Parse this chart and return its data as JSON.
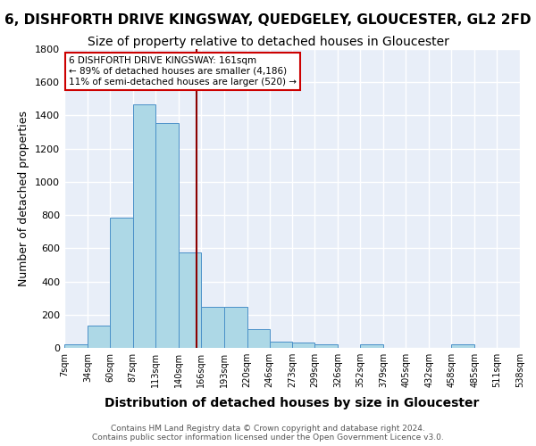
{
  "title1": "6, DISHFORTH DRIVE KINGSWAY, QUEDGELEY, GLOUCESTER, GL2 2FD",
  "title2": "Size of property relative to detached houses in Gloucester",
  "xlabel": "Distribution of detached houses by size in Gloucester",
  "ylabel": "Number of detached properties",
  "bin_edges": [
    7,
    34,
    60,
    87,
    113,
    140,
    166,
    193,
    220,
    246,
    273,
    299,
    326,
    352,
    379,
    405,
    432,
    458,
    485,
    511,
    538
  ],
  "bar_heights": [
    20,
    135,
    785,
    1465,
    1355,
    575,
    248,
    248,
    115,
    35,
    30,
    20,
    0,
    20,
    0,
    0,
    0,
    20,
    0,
    0
  ],
  "bar_color": "#add8e6",
  "bar_edge_color": "#4a90c8",
  "property_size": 161,
  "property_line_color": "#8b0000",
  "annotation_text": "6 DISHFORTH DRIVE KINGSWAY: 161sqm\n← 89% of detached houses are smaller (4,186)\n11% of semi-detached houses are larger (520) →",
  "annotation_box_color": "#ffffff",
  "annotation_box_edge": "#cc0000",
  "ylim": [
    0,
    1800
  ],
  "yticks": [
    0,
    200,
    400,
    600,
    800,
    1000,
    1200,
    1400,
    1600,
    1800
  ],
  "bg_color": "#e8eef8",
  "grid_color": "#ffffff",
  "footer_text": "Contains HM Land Registry data © Crown copyright and database right 2024.\nContains public sector information licensed under the Open Government Licence v3.0.",
  "title1_fontsize": 11,
  "title2_fontsize": 10,
  "xlabel_fontsize": 10,
  "ylabel_fontsize": 9
}
